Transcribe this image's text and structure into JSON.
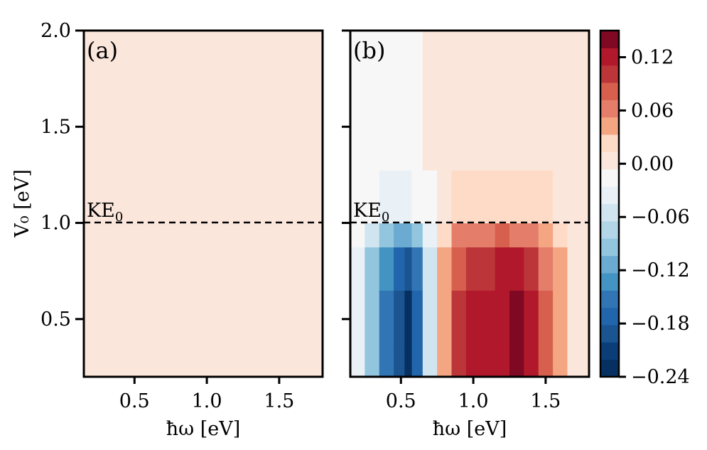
{
  "chart_data": {
    "type": "heatmap",
    "x_values_ev": [
      0.2,
      0.3,
      0.4,
      0.5,
      0.55,
      0.6,
      0.7,
      0.8,
      0.9,
      1.0,
      1.1,
      1.2,
      1.3,
      1.4,
      1.5,
      1.6,
      1.7,
      1.8
    ],
    "y_values_ev": [
      0.2,
      0.5,
      0.8,
      0.95,
      1.05,
      1.5,
      2.0
    ],
    "colorbar": {
      "range": [
        -0.24,
        0.15
      ],
      "ticks": [
        0.12,
        0.06,
        0.0,
        -0.06,
        -0.12,
        -0.18,
        -0.24
      ],
      "tick_labels": [
        "0.12",
        "0.06",
        "0.00",
        "−0.06",
        "−0.12",
        "−0.18",
        "−0.24"
      ],
      "colors": [
        "#053061",
        "#0b3d78",
        "#1a5591",
        "#2166ac",
        "#3275b5",
        "#4393c3",
        "#6cabd1",
        "#92c5de",
        "#b2d5e7",
        "#d1e5f0",
        "#e9f1f6",
        "#f7f7f7",
        "#fbe6dc",
        "#fddbc7",
        "#f4a582",
        "#e47e6a",
        "#d6604d",
        "#bb3539",
        "#b2182b",
        "#7f0822"
      ]
    },
    "panels": [
      {
        "label": "(a)",
        "xlabel": "ħω [eV]",
        "ylabel": "V₀ [eV]",
        "xlim": [
          0.15,
          1.8
        ],
        "ylim": [
          0.2,
          2.0
        ],
        "xticks": [
          0.5,
          1.0,
          1.5
        ],
        "xtick_labels": [
          "0.5",
          "1.0",
          "1.5"
        ],
        "yticks": [
          0.5,
          1.0,
          1.5,
          2.0
        ],
        "ytick_labels": [
          "0.5",
          "1.0",
          "1.5",
          "2.0"
        ],
        "annotation": {
          "text": "KE",
          "subscript": "0",
          "y": 1.0
        },
        "z": [
          [
            0.002,
            0.002,
            0.001,
            0.001,
            0.001,
            0.001,
            0.001,
            0.002,
            0.002,
            0.002,
            0.001,
            0.001,
            0.001,
            0.001,
            0.002,
            0.002,
            0.001,
            0.001
          ],
          [
            0.002,
            0.001,
            0.001,
            0.001,
            0.001,
            0.001,
            0.002,
            0.002,
            0.002,
            0.001,
            0.001,
            0.001,
            0.001,
            0.002,
            0.002,
            0.002,
            0.001,
            0.001
          ],
          [
            0.001,
            0.001,
            0.001,
            0.002,
            0.002,
            0.002,
            0.002,
            0.001,
            0.001,
            0.001,
            0.002,
            0.002,
            0.002,
            0.001,
            0.001,
            0.001,
            0.002,
            0.002
          ],
          [
            0.001,
            0.002,
            0.002,
            0.002,
            0.001,
            0.001,
            0.001,
            0.001,
            0.002,
            0.002,
            0.002,
            0.001,
            0.001,
            0.001,
            0.002,
            0.002,
            0.002,
            0.001
          ],
          [
            0.002,
            0.002,
            0.001,
            0.001,
            0.001,
            0.002,
            0.002,
            0.002,
            0.001,
            0.001,
            0.001,
            0.002,
            0.002,
            0.002,
            0.001,
            0.001,
            0.001,
            0.002
          ],
          [
            0.001,
            0.001,
            0.002,
            0.002,
            0.002,
            0.001,
            0.001,
            0.001,
            0.002,
            0.002,
            0.002,
            0.001,
            0.001,
            0.001,
            0.002,
            0.002,
            0.002,
            0.001
          ],
          [
            0.002,
            0.002,
            0.001,
            0.001,
            0.001,
            0.002,
            0.002,
            0.002,
            0.001,
            0.001,
            0.001,
            0.002,
            0.002,
            0.002,
            0.001,
            0.001,
            0.001,
            0.002
          ]
        ]
      },
      {
        "label": "(b)",
        "xlabel": "ħω [eV]",
        "xlim": [
          0.15,
          1.8
        ],
        "ylim": [
          0.2,
          2.0
        ],
        "xticks": [
          0.5,
          1.0,
          1.5
        ],
        "xtick_labels": [
          "0.5",
          "1.0",
          "1.5"
        ],
        "yticks": [
          0.5,
          1.0,
          1.5,
          2.0
        ],
        "annotation": {
          "text": "KE",
          "subscript": "0",
          "y": 1.0
        },
        "z": [
          [
            -0.04,
            -0.1,
            -0.16,
            -0.2,
            -0.24,
            -0.18,
            -0.06,
            0.04,
            0.1,
            0.12,
            0.12,
            0.13,
            0.15,
            0.12,
            0.08,
            0.04,
            0.01,
            0.01
          ],
          [
            -0.04,
            -0.1,
            -0.16,
            -0.2,
            -0.24,
            -0.18,
            -0.06,
            0.04,
            0.1,
            0.12,
            0.12,
            0.13,
            0.15,
            0.12,
            0.08,
            0.04,
            0.01,
            0.01
          ],
          [
            -0.03,
            -0.09,
            -0.14,
            -0.18,
            -0.2,
            -0.15,
            -0.05,
            0.04,
            0.09,
            0.11,
            0.11,
            0.12,
            0.12,
            0.1,
            0.07,
            0.04,
            0.01,
            0.01
          ],
          [
            -0.02,
            -0.06,
            -0.09,
            -0.12,
            -0.12,
            -0.09,
            -0.03,
            0.03,
            0.06,
            0.07,
            0.07,
            0.08,
            0.07,
            0.06,
            0.05,
            0.03,
            0.01,
            0.01
          ],
          [
            -0.01,
            -0.02,
            -0.03,
            -0.04,
            -0.04,
            -0.02,
            -0.01,
            0.01,
            0.02,
            0.02,
            0.02,
            0.02,
            0.02,
            0.02,
            0.02,
            0.01,
            0.01,
            0.005
          ],
          [
            -0.01,
            -0.01,
            -0.01,
            -0.01,
            -0.01,
            -0.01,
            -0.005,
            0.005,
            0.005,
            0.005,
            0.005,
            0.005,
            0.005,
            0.005,
            0.005,
            0.005,
            0.005,
            -0.005
          ],
          [
            -0.01,
            -0.01,
            -0.01,
            -0.01,
            -0.01,
            -0.01,
            -0.005,
            0.005,
            0.005,
            0.005,
            0.005,
            0.005,
            0.005,
            0.005,
            0.005,
            0.005,
            0.005,
            -0.005
          ]
        ]
      }
    ]
  }
}
